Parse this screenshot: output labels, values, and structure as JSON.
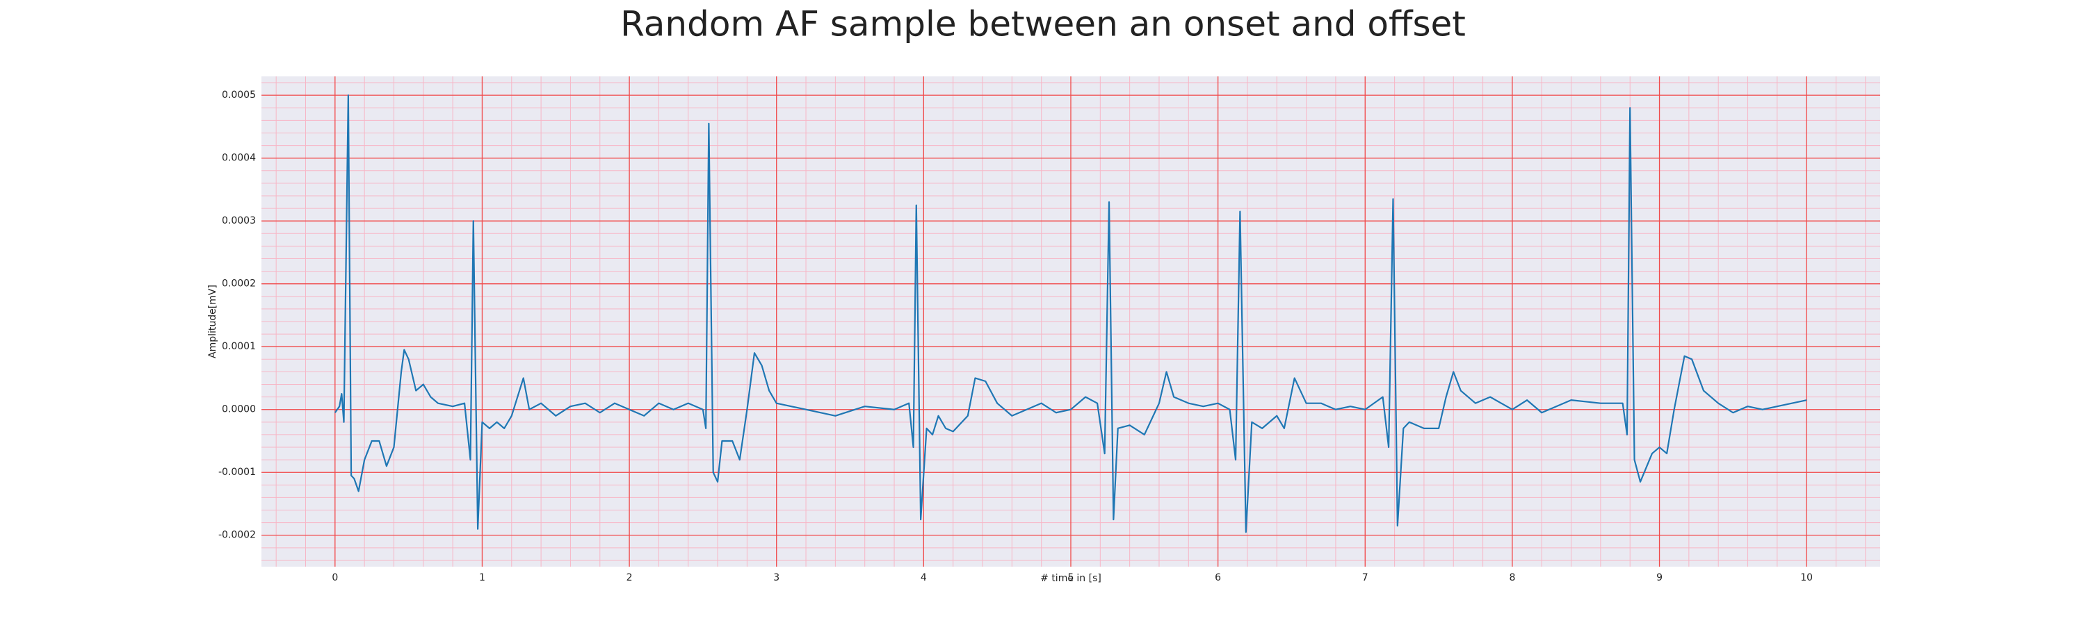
{
  "chart_data": {
    "type": "line",
    "title": "Random AF sample between an onset and offset",
    "xlabel": "# time in [s]",
    "ylabel": "Amplitude[mV]",
    "color": "#1f77b4",
    "grid": true,
    "xlim": [
      -0.5,
      10.5
    ],
    "xticks": [
      0,
      1,
      2,
      3,
      4,
      5,
      6,
      7,
      8,
      9,
      10
    ],
    "ylim": [
      -0.00025,
      0.00053
    ],
    "yticks": [
      -0.0002,
      -0.0001,
      {
        "value": 0,
        "label": "0.0000"
      },
      0.0001,
      0.0002,
      0.0003,
      0.0004,
      0.0005
    ],
    "x": [
      0,
      0.03,
      0.045,
      0.06,
      0.09,
      0.11,
      0.13,
      0.16,
      0.2,
      0.25,
      0.3,
      0.35,
      0.4,
      0.45,
      0.47,
      0.5,
      0.55,
      0.6,
      0.65,
      0.7,
      0.8,
      0.88,
      0.92,
      0.94,
      0.97,
      1.0,
      1.05,
      1.1,
      1.15,
      1.2,
      1.28,
      1.32,
      1.4,
      1.5,
      1.6,
      1.7,
      1.8,
      1.9,
      2.0,
      2.1,
      2.2,
      2.3,
      2.4,
      2.5,
      2.52,
      2.54,
      2.57,
      2.6,
      2.63,
      2.7,
      2.75,
      2.8,
      2.85,
      2.9,
      2.95,
      3.0,
      3.2,
      3.4,
      3.6,
      3.8,
      3.9,
      3.93,
      3.95,
      3.98,
      4.02,
      4.06,
      4.1,
      4.15,
      4.2,
      4.3,
      4.35,
      4.42,
      4.5,
      4.6,
      4.7,
      4.8,
      4.9,
      5.0,
      5.1,
      5.18,
      5.23,
      5.26,
      5.29,
      5.32,
      5.4,
      5.5,
      5.6,
      5.65,
      5.7,
      5.8,
      5.9,
      6.0,
      6.08,
      6.12,
      6.15,
      6.19,
      6.23,
      6.3,
      6.4,
      6.45,
      6.52,
      6.6,
      6.7,
      6.8,
      6.9,
      7.0,
      7.12,
      7.16,
      7.19,
      7.22,
      7.26,
      7.3,
      7.4,
      7.5,
      7.55,
      7.6,
      7.65,
      7.75,
      7.85,
      8.0,
      8.1,
      8.2,
      8.4,
      8.6,
      8.75,
      8.78,
      8.8,
      8.83,
      8.87,
      8.95,
      9.0,
      9.05,
      9.1,
      9.17,
      9.22,
      9.3,
      9.4,
      9.5,
      9.6,
      9.7,
      9.8,
      9.9,
      10.0
    ],
    "values": [
      -5e-06,
      5e-06,
      2.5e-05,
      -2e-05,
      0.0005,
      -0.000105,
      -0.00011,
      -0.00013,
      -8e-05,
      -5e-05,
      -5e-05,
      -9e-05,
      -6e-05,
      6e-05,
      9.5e-05,
      8e-05,
      3e-05,
      4e-05,
      2e-05,
      1e-05,
      5e-06,
      1e-05,
      -8e-05,
      0.0003,
      -0.00019,
      -2e-05,
      -3e-05,
      -2e-05,
      -3e-05,
      -1e-05,
      5e-05,
      0,
      1e-05,
      -1e-05,
      5e-06,
      1e-05,
      -5e-06,
      1e-05,
      0,
      -1e-05,
      1e-05,
      0,
      1e-05,
      0,
      -3e-05,
      0.000455,
      -0.0001,
      -0.000115,
      -5e-05,
      -5e-05,
      -8e-05,
      0,
      9e-05,
      7e-05,
      3e-05,
      1e-05,
      0,
      -1e-05,
      5e-06,
      0,
      1e-05,
      -6e-05,
      0.000325,
      -0.000175,
      -3e-05,
      -4e-05,
      -1e-05,
      -3e-05,
      -3.5e-05,
      -1e-05,
      5e-05,
      4.5e-05,
      1e-05,
      -1e-05,
      0,
      1e-05,
      -5e-06,
      0,
      2e-05,
      1e-05,
      -7e-05,
      0.00033,
      -0.000175,
      -3e-05,
      -2.5e-05,
      -4e-05,
      1e-05,
      6e-05,
      2e-05,
      1e-05,
      5e-06,
      1e-05,
      0,
      -8e-05,
      0.000315,
      -0.000195,
      -2e-05,
      -3e-05,
      -1e-05,
      -3e-05,
      5e-05,
      1e-05,
      1e-05,
      0,
      5e-06,
      0,
      2e-05,
      -6e-05,
      0.000335,
      -0.000185,
      -3e-05,
      -2e-05,
      -3e-05,
      -3e-05,
      2e-05,
      6e-05,
      3e-05,
      1e-05,
      2e-05,
      0,
      1.5e-05,
      -5e-06,
      1.5e-05,
      1e-05,
      1e-05,
      -4e-05,
      0.00048,
      -8e-05,
      -0.000115,
      -7e-05,
      -6e-05,
      -7e-05,
      0,
      8.5e-05,
      8e-05,
      3e-05,
      1e-05,
      -5e-06,
      5e-06,
      0,
      5e-06,
      1e-05,
      1.5e-05
    ]
  }
}
